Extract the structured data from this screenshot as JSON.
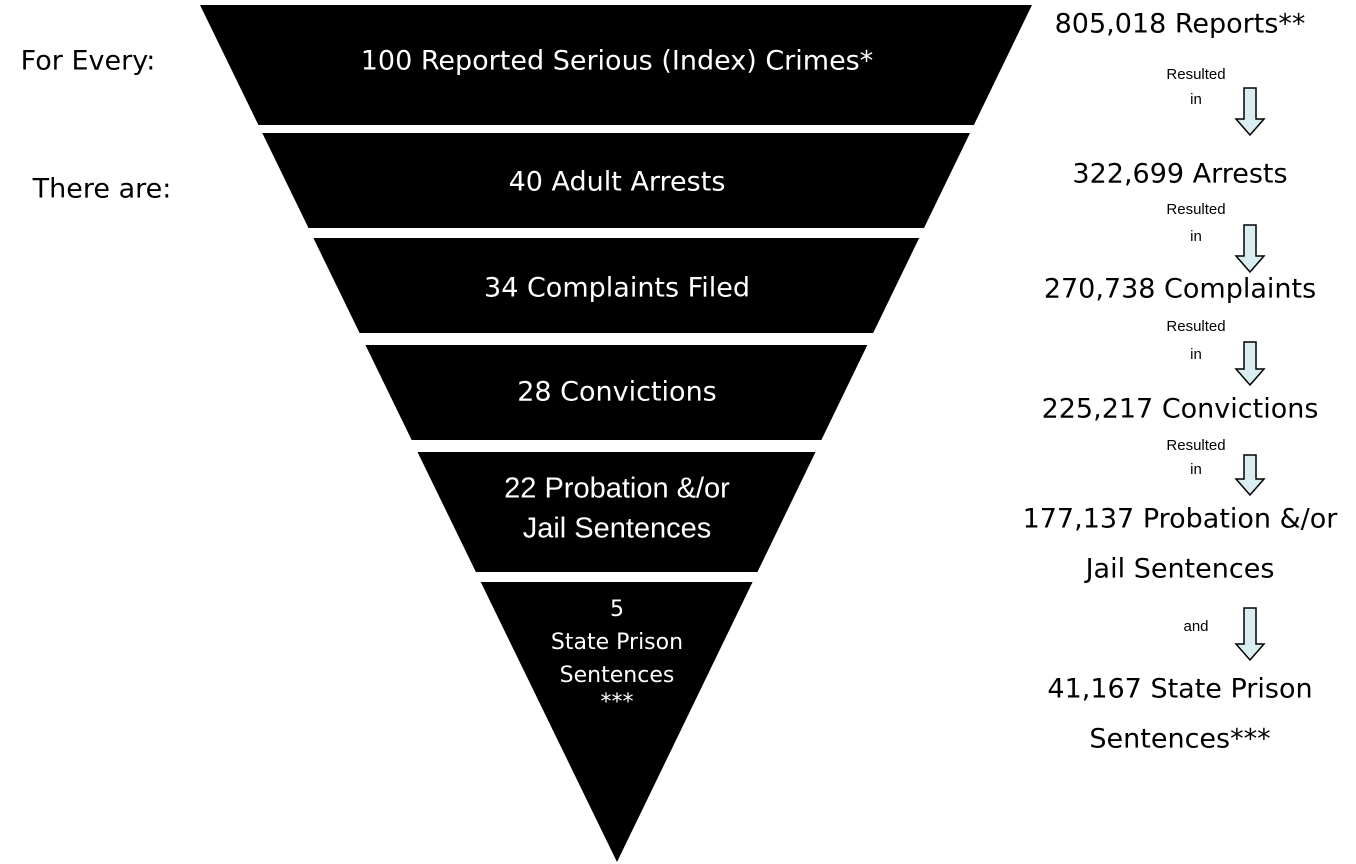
{
  "left_labels": [
    "For Every:",
    "There are:"
  ],
  "funnel": {
    "levels": [
      {
        "lines": [
          "100 Reported Serious (Index) Crimes*"
        ]
      },
      {
        "lines": [
          "40 Adult Arrests"
        ]
      },
      {
        "lines": [
          "34 Complaints Filed"
        ]
      },
      {
        "lines": [
          "28 Convictions"
        ]
      },
      {
        "lines": [
          "22 Probation &/or",
          "Jail Sentences"
        ]
      },
      {
        "lines": [
          "5",
          "State Prison",
          "Sentences",
          "***"
        ]
      }
    ]
  },
  "stages": [
    {
      "lines": [
        "805,018 Reports**"
      ]
    },
    {
      "lines": [
        "322,699 Arrests"
      ]
    },
    {
      "lines": [
        "270,738 Complaints"
      ]
    },
    {
      "lines": [
        "225,217 Convictions"
      ]
    },
    {
      "lines": [
        "177,137 Probation &/or",
        "Jail Sentences"
      ]
    },
    {
      "lines": [
        "41,167 State Prison",
        "Sentences***"
      ]
    }
  ],
  "connectors": [
    {
      "lines": [
        "Resulted",
        "in"
      ]
    },
    {
      "lines": [
        "Resulted",
        "in"
      ]
    },
    {
      "lines": [
        "Resulted",
        "in"
      ]
    },
    {
      "lines": [
        "Resulted",
        "in"
      ]
    },
    {
      "lines": [
        "and"
      ]
    }
  ]
}
